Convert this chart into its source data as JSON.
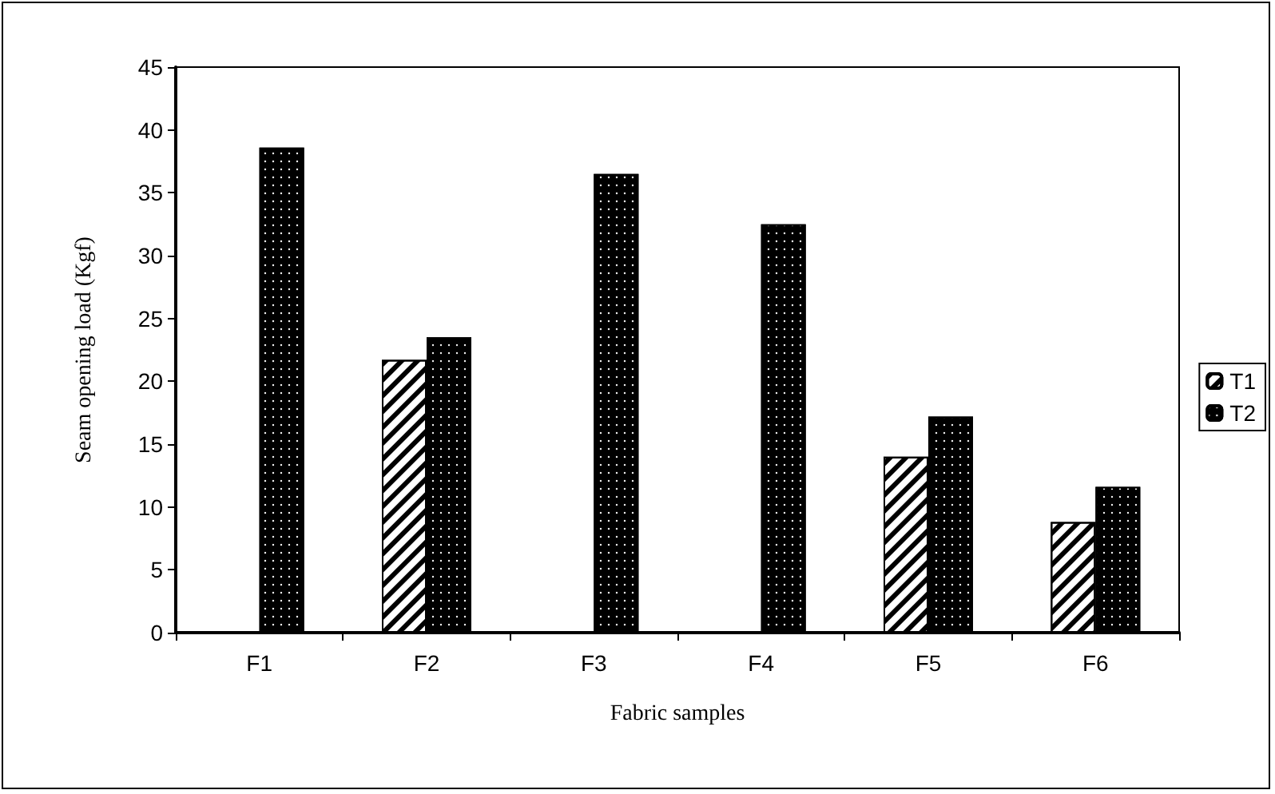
{
  "chart_data": {
    "type": "bar",
    "xlabel": "Fabric samples",
    "ylabel": "Seam opening load (Kgf)",
    "categories": [
      "F1",
      "F2",
      "F3",
      "F4",
      "F5",
      "F6"
    ],
    "series": [
      {
        "name": "T1",
        "color": "#ffffff",
        "values": [
          null,
          21.7,
          null,
          null,
          14.0,
          8.8
        ]
      },
      {
        "name": "T2",
        "color": "#000000",
        "values": [
          38.6,
          23.5,
          36.5,
          32.5,
          17.2,
          11.6
        ]
      }
    ],
    "ylim": [
      0,
      45
    ],
    "yticks": [
      0,
      5,
      10,
      15,
      20,
      25,
      30,
      35,
      40,
      45
    ],
    "grid": false,
    "legend": "right"
  }
}
